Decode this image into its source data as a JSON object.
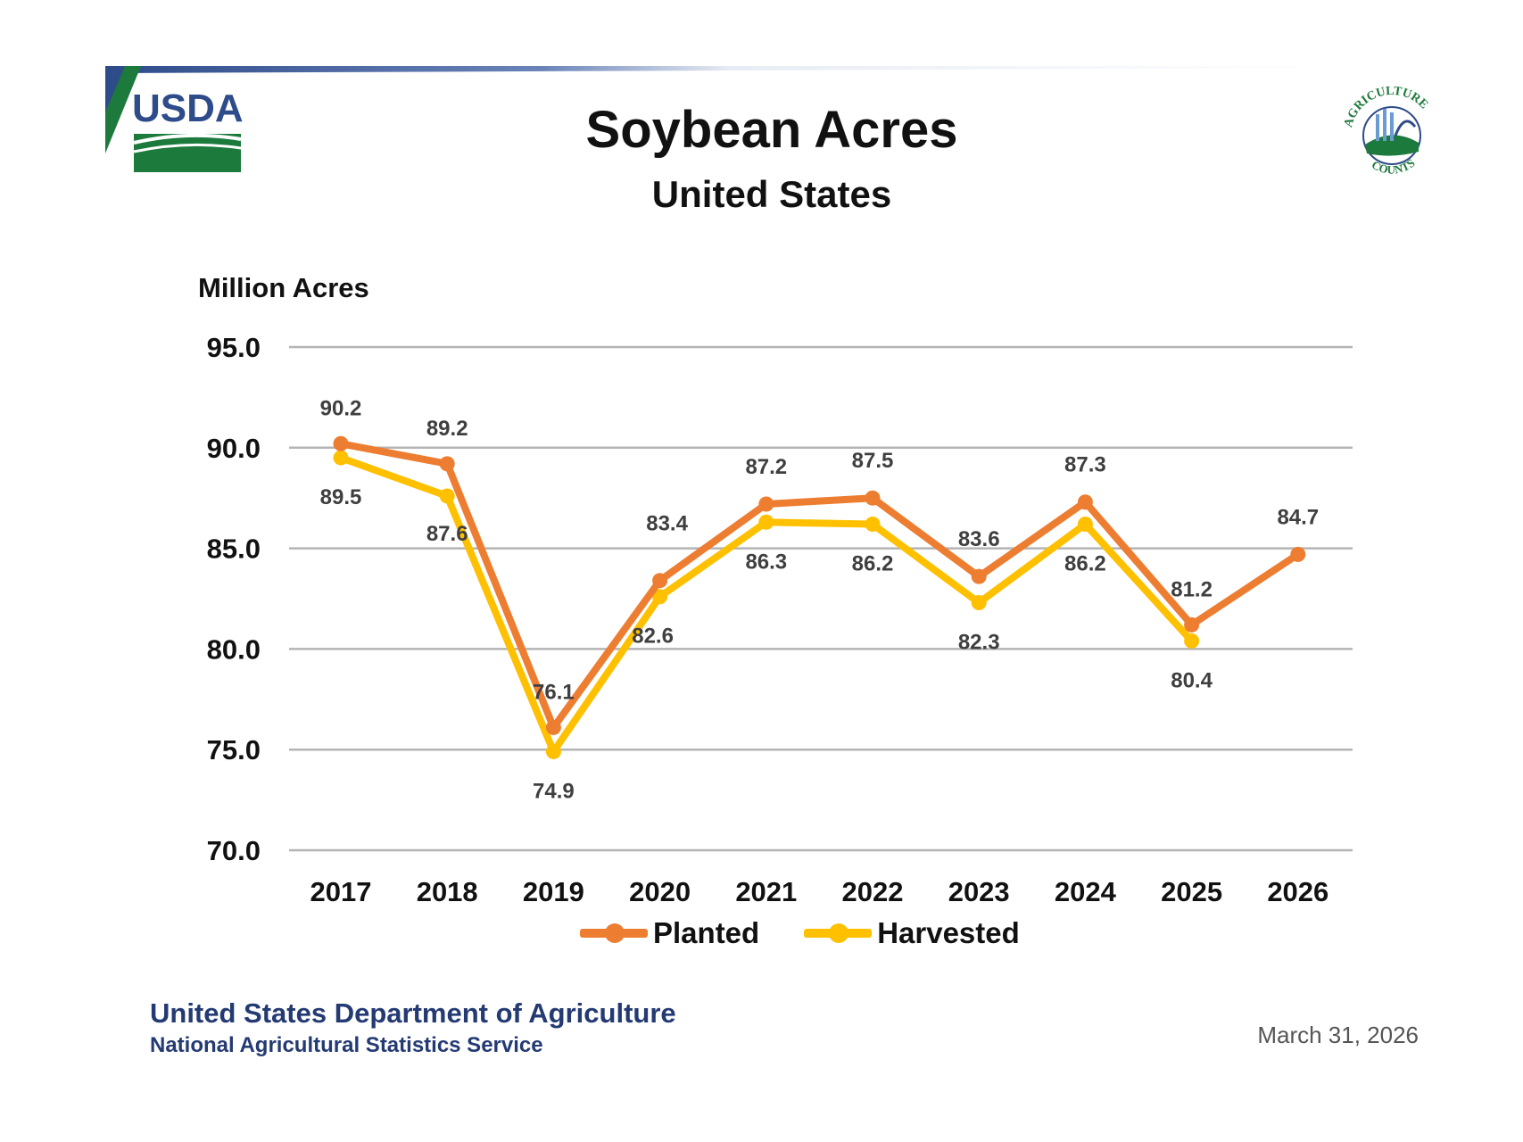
{
  "header": {
    "usda_logo_text": "USDA",
    "ag_counts_logo_text": "AGRICULTURE COUNTS",
    "brand_blue": "#2e4b8a",
    "brand_green": "#1c7a3c"
  },
  "chart_data": {
    "type": "line",
    "title": "Soybean Acres",
    "subtitle": "United States",
    "ylabel": "Million Acres",
    "xlabel": "",
    "ylim": [
      70.0,
      95.0
    ],
    "yticks": [
      "95.0",
      "90.0",
      "85.0",
      "80.0",
      "75.0",
      "70.0"
    ],
    "ytick_values": [
      95,
      90,
      85,
      80,
      75,
      70
    ],
    "grid": true,
    "legend_position": "bottom",
    "categories": [
      "2017",
      "2018",
      "2019",
      "2020",
      "2021",
      "2022",
      "2023",
      "2024",
      "2025",
      "2026"
    ],
    "series": [
      {
        "name": "Planted",
        "color": "#ed7d31",
        "values": [
          90.2,
          89.2,
          76.1,
          83.4,
          87.2,
          87.5,
          83.6,
          87.3,
          81.2,
          84.7
        ],
        "labels": [
          "90.2",
          "89.2",
          "76.1",
          "83.4",
          "87.2",
          "87.5",
          "83.6",
          "87.3",
          "81.2",
          "84.7"
        ]
      },
      {
        "name": "Harvested",
        "color": "#ffc000",
        "values": [
          89.5,
          87.6,
          74.9,
          82.6,
          86.3,
          86.2,
          82.3,
          86.2,
          80.4,
          null
        ],
        "labels": [
          "89.5",
          "87.6",
          "74.9",
          "82.6",
          "86.3",
          "86.2",
          "82.3",
          "86.2",
          "80.4",
          ""
        ]
      }
    ]
  },
  "footer": {
    "department": "United States Department of Agriculture",
    "service": "National Agricultural Statistics Service",
    "date": "March 31, 2026"
  }
}
